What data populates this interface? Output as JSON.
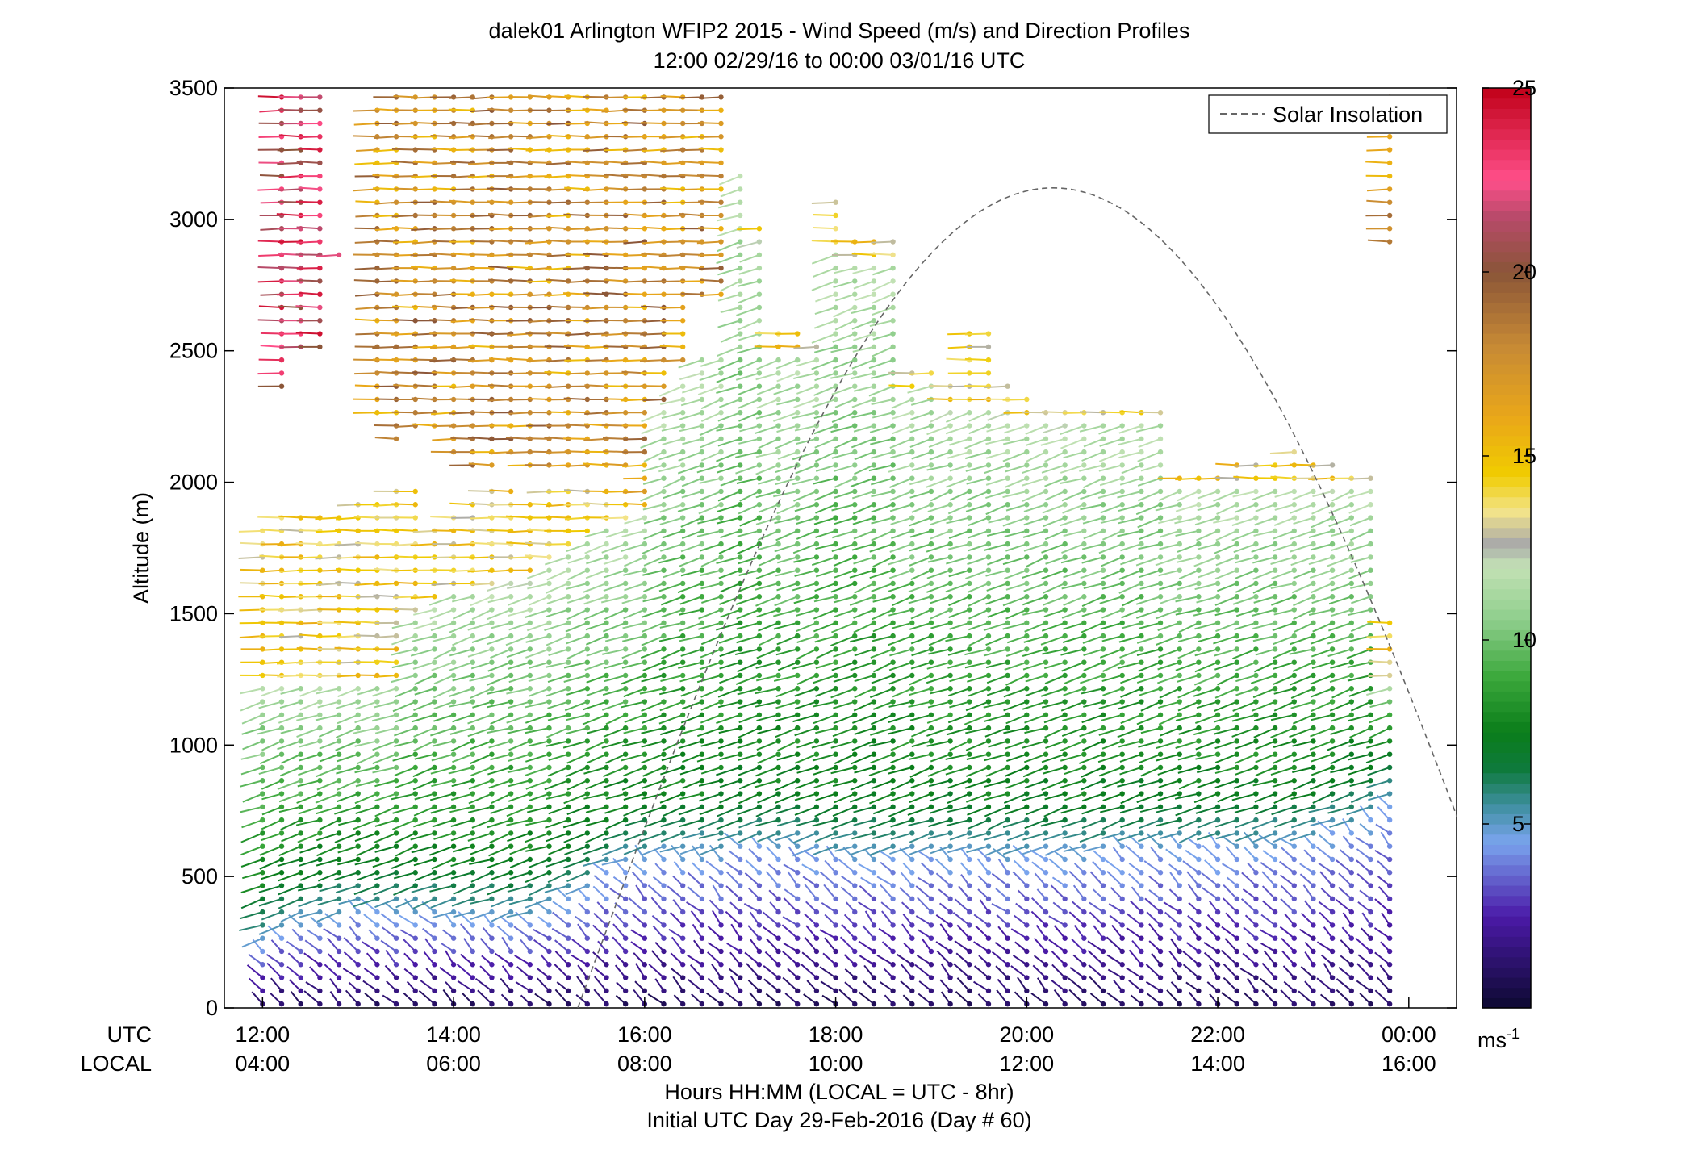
{
  "chart_data": {
    "type": "scatter",
    "title": "dalek01 Arlington WFIP2 2015 - Wind Speed (m/s) and Direction Profiles",
    "subtitle": "12:00 02/29/16 to 00:00 03/01/16  UTC",
    "ylabel": "Altitude (m)",
    "xlabel_line1": "Hours HH:MM  (LOCAL = UTC - 8hr)",
    "xlabel_line2": "Initial UTC Day 29-Feb-2016 (Day # 60)",
    "x_row_label_utc": "UTC",
    "x_row_label_local": "LOCAL",
    "x_ticks_utc": [
      "12:00",
      "14:00",
      "16:00",
      "18:00",
      "20:00",
      "22:00",
      "00:00"
    ],
    "x_ticks_local": [
      "04:00",
      "06:00",
      "08:00",
      "10:00",
      "12:00",
      "14:00",
      "16:00"
    ],
    "x_tick_hours_utc": [
      12,
      14,
      16,
      18,
      20,
      22,
      24
    ],
    "xlim_hours_utc": [
      11.6,
      24.5
    ],
    "y_ticks": [
      "0",
      "500",
      "1000",
      "1500",
      "2000",
      "2500",
      "3000",
      "3500"
    ],
    "ylim": [
      0,
      3500
    ],
    "grid": false,
    "legend": {
      "position": "top-right",
      "entries": [
        {
          "label": "Solar Insolation",
          "style": "dashed",
          "color": "#666666"
        }
      ]
    },
    "colorbar": {
      "unit_label": "ms",
      "unit_exponent": "-1",
      "tick_labels": [
        "5",
        "10",
        "15",
        "20",
        "25"
      ],
      "range": [
        0,
        25
      ],
      "color_stops": [
        {
          "value": 0,
          "color": "#0c0930"
        },
        {
          "value": 2.5,
          "color": "#4b1aa8"
        },
        {
          "value": 4.5,
          "color": "#7aa4ee"
        },
        {
          "value": 5.5,
          "color": "#3f8fa0"
        },
        {
          "value": 6.5,
          "color": "#0e7a3c"
        },
        {
          "value": 7.5,
          "color": "#0a7d1a"
        },
        {
          "value": 9,
          "color": "#3ca83c"
        },
        {
          "value": 10.5,
          "color": "#8ccd8a"
        },
        {
          "value": 12,
          "color": "#c4e2b6"
        },
        {
          "value": 12.6,
          "color": "#a9a9a9"
        },
        {
          "value": 13.5,
          "color": "#f3e48a"
        },
        {
          "value": 14.5,
          "color": "#f0cc00"
        },
        {
          "value": 16,
          "color": "#eaa818"
        },
        {
          "value": 18,
          "color": "#c78a35"
        },
        {
          "value": 20,
          "color": "#8a5538"
        },
        {
          "value": 21.5,
          "color": "#b84a6a"
        },
        {
          "value": 22.5,
          "color": "#ff4f8a"
        },
        {
          "value": 25,
          "color": "#c00018"
        }
      ]
    },
    "solar_insolation": {
      "description_in_data_units": "half-sine arc in hour/altitude space",
      "rise_hour": 15.3,
      "set_hour": 25.25,
      "peak_altitude": 3120
    },
    "barbs": {
      "hours_utc": [
        12.0,
        12.2,
        12.4,
        12.6,
        12.8,
        13.0,
        13.2,
        13.4,
        13.6,
        13.8,
        14.0,
        14.2,
        14.4,
        14.6,
        14.8,
        15.0,
        15.2,
        15.4,
        15.6,
        15.8,
        16.0,
        16.2,
        16.4,
        16.6,
        16.8,
        17.0,
        17.2,
        17.4,
        17.6,
        17.8,
        18.0,
        18.2,
        18.4,
        18.6,
        18.8,
        19.0,
        19.2,
        19.4,
        19.6,
        19.8,
        20.0,
        20.2,
        20.4,
        20.6,
        20.8,
        21.0,
        21.2,
        21.4,
        21.6,
        21.8,
        22.0,
        22.2,
        22.4,
        22.6,
        22.8,
        23.0,
        23.2,
        23.4,
        23.6,
        23.8
      ],
      "altitude_step_m": 50,
      "altitude_first_m": 15,
      "columns": [
        {
          "h": 12.0,
          "top": 1840,
          "lowTop": 260,
          "midTop": 1250,
          "ylw": 1840,
          "hi": [
            [
              2610,
              2610
            ],
            [
              2750,
              2750
            ]
          ]
        },
        {
          "h": 12.2,
          "top": 3480,
          "lowTop": 300,
          "midTop": 1250,
          "ylw": 1900,
          "hi": [
            [
              2360,
              3480
            ]
          ]
        },
        {
          "h": 12.4,
          "top": 3480,
          "lowTop": 330,
          "midTop": 1260,
          "ylw": 1900,
          "hi": [
            [
              2480,
              3480
            ]
          ]
        },
        {
          "h": 12.6,
          "top": 3480,
          "lowTop": 350,
          "midTop": 1260,
          "ylw": 1900,
          "hi": [
            [
              2480,
              3480
            ]
          ]
        },
        {
          "h": 12.8,
          "top": 2900,
          "lowTop": 360,
          "midTop": 1260,
          "ylw": 1900,
          "hi": [
            [
              2830,
              2900
            ]
          ]
        },
        {
          "h": 13.0,
          "top": 1920,
          "lowTop": 370,
          "midTop": 1260,
          "ylw": 1920,
          "hi": []
        },
        {
          "h": 13.2,
          "top": 3430,
          "lowTop": 370,
          "midTop": 1260,
          "ylw": 1950,
          "hi": [
            [
              2240,
              3430
            ]
          ]
        },
        {
          "h": 13.4,
          "top": 3480,
          "lowTop": 370,
          "midTop": 1250,
          "ylw": 1980,
          "hi": [
            [
              2160,
              3480
            ]
          ]
        },
        {
          "h": 13.6,
          "top": 3480,
          "lowTop": 370,
          "midTop": 1500,
          "ylw": 1980,
          "hi": [
            [
              2200,
              3480
            ]
          ]
        },
        {
          "h": 13.8,
          "top": 3480,
          "lowTop": 370,
          "midTop": 1560,
          "ylw": 1840,
          "hi": [
            [
              2200,
              3480
            ]
          ]
        },
        {
          "h": 14.0,
          "top": 3480,
          "lowTop": 360,
          "midTop": 1580,
          "ylw": 1880,
          "hi": [
            [
              2100,
              3480
            ]
          ]
        },
        {
          "h": 14.2,
          "top": 3480,
          "lowTop": 360,
          "midTop": 1600,
          "ylw": 1950,
          "hi": [
            [
              2060,
              3480
            ]
          ]
        },
        {
          "h": 14.4,
          "top": 3480,
          "lowTop": 360,
          "midTop": 1600,
          "ylw": 1970,
          "hi": [
            [
              2060,
              3480
            ]
          ]
        },
        {
          "h": 14.6,
          "top": 3480,
          "lowTop": 350,
          "midTop": 1620,
          "ylw": 1980,
          "hi": [
            [
              2080,
              3480
            ]
          ]
        },
        {
          "h": 14.8,
          "top": 3480,
          "lowTop": 350,
          "midTop": 1640,
          "ylw": 1960,
          "hi": [
            [
              2050,
              3480
            ]
          ]
        },
        {
          "h": 15.0,
          "top": 3480,
          "lowTop": 380,
          "midTop": 1700,
          "ylw": 1980,
          "hi": [
            [
              2050,
              3480
            ]
          ]
        },
        {
          "h": 15.2,
          "top": 3480,
          "lowTop": 420,
          "midTop": 1750,
          "ylw": 1990,
          "hi": [
            [
              2050,
              3480
            ]
          ]
        },
        {
          "h": 15.4,
          "top": 3480,
          "lowTop": 460,
          "midTop": 1800,
          "ylw": 2000,
          "hi": [
            [
              2050,
              3480
            ]
          ]
        },
        {
          "h": 15.6,
          "top": 3480,
          "lowTop": 520,
          "midTop": 1850,
          "ylw": 2000,
          "hi": [
            [
              2050,
              3480
            ]
          ]
        },
        {
          "h": 15.8,
          "top": 3480,
          "lowTop": 560,
          "midTop": 1850,
          "ylw": 2000,
          "hi": [
            [
              2050,
              3480
            ]
          ]
        },
        {
          "h": 16.0,
          "top": 3480,
          "lowTop": 580,
          "midTop": 1900,
          "ylw": 1920,
          "hi": [
            [
              1950,
              3480
            ]
          ]
        },
        {
          "h": 16.2,
          "top": 3480,
          "lowTop": 600,
          "midTop": 2300,
          "ylw": 2300,
          "hi": [
            [
              2300,
              3480
            ]
          ]
        },
        {
          "h": 16.4,
          "top": 3480,
          "lowTop": 600,
          "midTop": 2400,
          "ylw": 2400,
          "hi": [
            [
              2420,
              3480
            ]
          ]
        },
        {
          "h": 16.6,
          "top": 3480,
          "lowTop": 600,
          "midTop": 2500,
          "ylw": 2500,
          "hi": [
            [
              2700,
              3480
            ]
          ]
        },
        {
          "h": 16.8,
          "top": 3480,
          "lowTop": 610,
          "midTop": 2500,
          "ylw": 2500,
          "hi": [
            [
              2700,
              3480
            ]
          ]
        },
        {
          "h": 17.0,
          "top": 3180,
          "lowTop": 620,
          "midTop": 3180,
          "ylw": 3180,
          "hi": []
        },
        {
          "h": 17.2,
          "top": 3000,
          "lowTop": 620,
          "midTop": 2960,
          "ylw": 3000,
          "hi": []
        },
        {
          "h": 17.4,
          "top": 2600,
          "lowTop": 620,
          "midTop": 2500,
          "ylw": 2600,
          "hi": []
        },
        {
          "h": 17.6,
          "top": 2600,
          "lowTop": 620,
          "midTop": 2500,
          "ylw": 2600,
          "hi": []
        },
        {
          "h": 17.8,
          "top": 2550,
          "lowTop": 610,
          "midTop": 2500,
          "ylw": 2550,
          "hi": []
        },
        {
          "h": 18.0,
          "top": 3110,
          "lowTop": 600,
          "midTop": 2900,
          "ylw": 3110,
          "hi": []
        },
        {
          "h": 18.2,
          "top": 2950,
          "lowTop": 600,
          "midTop": 2850,
          "ylw": 2950,
          "hi": []
        },
        {
          "h": 18.4,
          "top": 2950,
          "lowTop": 600,
          "midTop": 2850,
          "ylw": 2950,
          "hi": []
        },
        {
          "h": 18.6,
          "top": 2950,
          "lowTop": 600,
          "midTop": 2850,
          "ylw": 2950,
          "hi": []
        },
        {
          "h": 18.8,
          "top": 2450,
          "lowTop": 600,
          "midTop": 2350,
          "ylw": 2450,
          "hi": []
        },
        {
          "h": 19.0,
          "top": 2450,
          "lowTop": 600,
          "midTop": 2400,
          "ylw": 2450,
          "hi": []
        },
        {
          "h": 19.2,
          "top": 2380,
          "lowTop": 600,
          "midTop": 2300,
          "ylw": 2380,
          "hi": []
        },
        {
          "h": 19.4,
          "top": 2600,
          "lowTop": 600,
          "midTop": 2300,
          "ylw": 2600,
          "hi": []
        },
        {
          "h": 19.6,
          "top": 2600,
          "lowTop": 600,
          "midTop": 2300,
          "ylw": 2600,
          "hi": []
        },
        {
          "h": 19.8,
          "top": 2400,
          "lowTop": 600,
          "midTop": 2300,
          "ylw": 2400,
          "hi": []
        },
        {
          "h": 20.0,
          "top": 2350,
          "lowTop": 600,
          "midTop": 2250,
          "ylw": 2350,
          "hi": []
        },
        {
          "h": 20.2,
          "top": 2300,
          "lowTop": 600,
          "midTop": 2250,
          "ylw": 2300,
          "hi": []
        },
        {
          "h": 20.4,
          "top": 2300,
          "lowTop": 600,
          "midTop": 2250,
          "ylw": 2300,
          "hi": []
        },
        {
          "h": 20.6,
          "top": 2300,
          "lowTop": 600,
          "midTop": 2250,
          "ylw": 2300,
          "hi": []
        },
        {
          "h": 20.8,
          "top": 2300,
          "lowTop": 610,
          "midTop": 2250,
          "ylw": 2300,
          "hi": []
        },
        {
          "h": 21.0,
          "top": 2300,
          "lowTop": 620,
          "midTop": 2250,
          "ylw": 2300,
          "hi": []
        },
        {
          "h": 21.2,
          "top": 2280,
          "lowTop": 620,
          "midTop": 2250,
          "ylw": 2280,
          "hi": []
        },
        {
          "h": 21.4,
          "top": 2280,
          "lowTop": 620,
          "midTop": 2250,
          "ylw": 2280,
          "hi": []
        },
        {
          "h": 21.6,
          "top": 2060,
          "lowTop": 620,
          "midTop": 2000,
          "ylw": 2060,
          "hi": []
        },
        {
          "h": 21.8,
          "top": 2060,
          "lowTop": 620,
          "midTop": 2000,
          "ylw": 2060,
          "hi": []
        },
        {
          "h": 22.0,
          "top": 2060,
          "lowTop": 620,
          "midTop": 2000,
          "ylw": 2060,
          "hi": []
        },
        {
          "h": 22.2,
          "top": 2080,
          "lowTop": 620,
          "midTop": 2000,
          "ylw": 2080,
          "hi": []
        },
        {
          "h": 22.4,
          "top": 2080,
          "lowTop": 630,
          "midTop": 2000,
          "ylw": 2080,
          "hi": []
        },
        {
          "h": 22.6,
          "top": 2100,
          "lowTop": 640,
          "midTop": 2000,
          "ylw": 2100,
          "hi": []
        },
        {
          "h": 22.8,
          "top": 2120,
          "lowTop": 640,
          "midTop": 2000,
          "ylw": 2120,
          "hi": []
        },
        {
          "h": 23.0,
          "top": 2100,
          "lowTop": 650,
          "midTop": 2000,
          "ylw": 2100,
          "hi": []
        },
        {
          "h": 23.2,
          "top": 2080,
          "lowTop": 680,
          "midTop": 2000,
          "ylw": 2080,
          "hi": []
        },
        {
          "h": 23.4,
          "top": 2060,
          "lowTop": 700,
          "midTop": 2000,
          "ylw": 2060,
          "hi": []
        },
        {
          "h": 23.6,
          "top": 2040,
          "lowTop": 720,
          "midTop": 2000,
          "ylw": 2040,
          "hi": []
        },
        {
          "h": 23.8,
          "top": 3480,
          "lowTop": 800,
          "midTop": 1250,
          "ylw": 1500,
          "hi": [
            [
              2900,
              3480
            ]
          ]
        }
      ]
    }
  }
}
